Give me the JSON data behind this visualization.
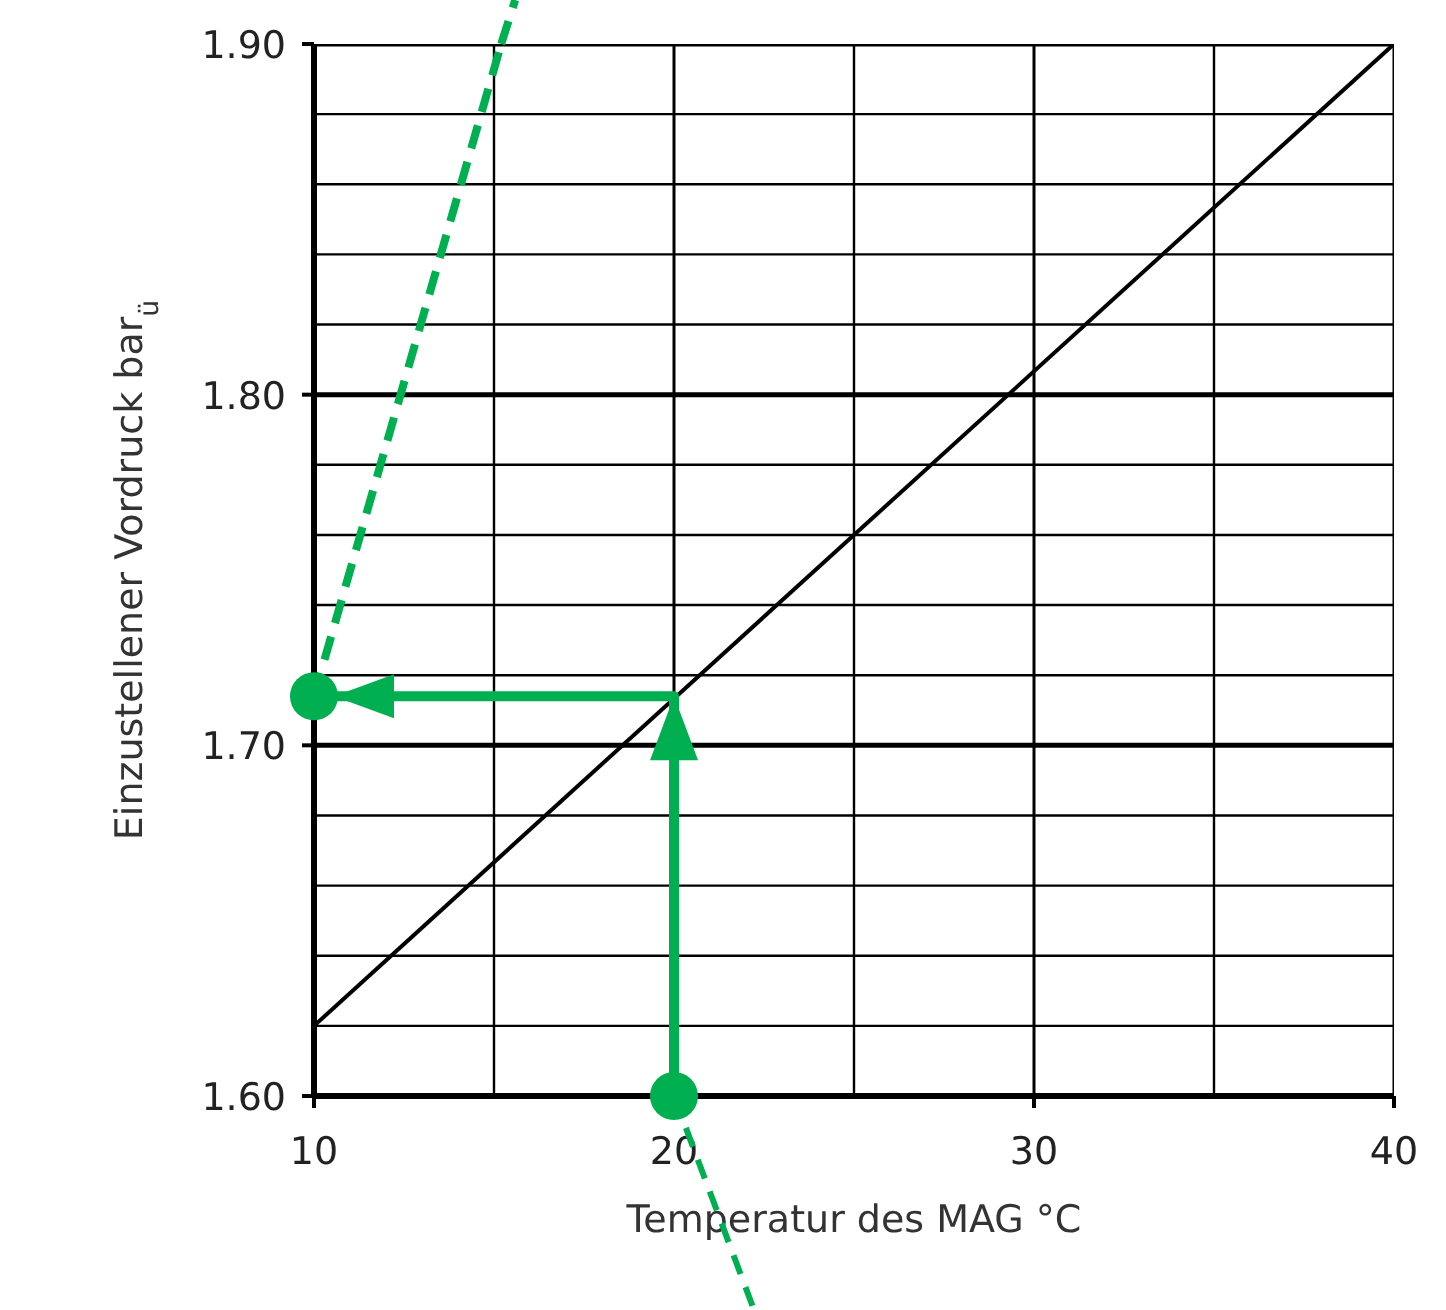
{
  "chart_data": {
    "type": "line",
    "xlabel": "Temperatur des MAG  °C",
    "ylabel": "Einzustellener Vordruck  bar$_{ü}$",
    "xlim": [
      10,
      40
    ],
    "ylim": [
      1.6,
      1.9
    ],
    "xticks": [
      {
        "value": 10,
        "label": "10"
      },
      {
        "value": 15,
        "label": null
      },
      {
        "value": 20,
        "label": "20"
      },
      {
        "value": 25,
        "label": null
      },
      {
        "value": 30,
        "label": "30"
      },
      {
        "value": 35,
        "label": null
      },
      {
        "value": 40,
        "label": "40"
      }
    ],
    "yticks": [
      {
        "value": 1.6,
        "label": "1.60"
      },
      {
        "value": 1.62,
        "label": null
      },
      {
        "value": 1.64,
        "label": null
      },
      {
        "value": 1.66,
        "label": null
      },
      {
        "value": 1.68,
        "label": null
      },
      {
        "value": 1.7,
        "label": "1.70"
      },
      {
        "value": 1.72,
        "label": null
      },
      {
        "value": 1.74,
        "label": null
      },
      {
        "value": 1.76,
        "label": null
      },
      {
        "value": 1.78,
        "label": null
      },
      {
        "value": 1.8,
        "label": "1.80"
      },
      {
        "value": 1.82,
        "label": null
      },
      {
        "value": 1.84,
        "label": null
      },
      {
        "value": 1.86,
        "label": null
      },
      {
        "value": 1.88,
        "label": null
      },
      {
        "value": 1.9,
        "label": "1.90"
      }
    ],
    "grid": true,
    "series": [
      {
        "color": "#000000",
        "x": [
          10,
          40
        ],
        "values": [
          1.62,
          1.9
        ]
      },
      {
        "color": "#00b050",
        "x": [
          20,
          20,
          10
        ],
        "values": [
          1.6,
          1.714,
          1.714
        ]
      },
      {
        "color": "#00b050",
        "x": [
          10,
          15.2
        ],
        "values": [
          1.714,
          1.9
        ],
        "line_style": "dashed"
      }
    ]
  }
}
